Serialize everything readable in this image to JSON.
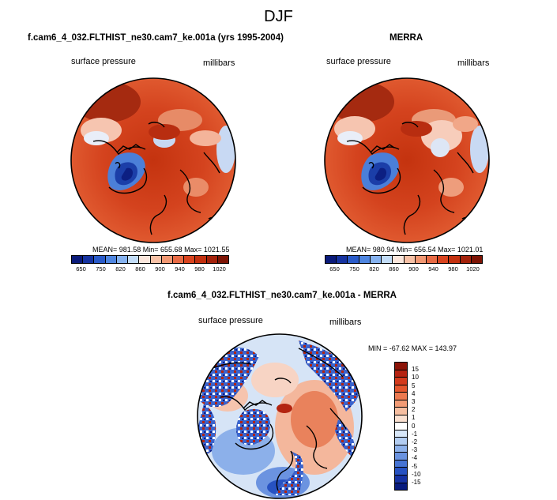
{
  "page": {
    "title": "DJF"
  },
  "panel_left": {
    "title": "f.cam6_4_032.FLTHIST_ne30.cam7_ke.001a (yrs 1995-2004)",
    "left_label": "surface pressure",
    "right_label": "millibars",
    "stats": "MEAN= 981.58  Min= 655.68  Max= 1021.55"
  },
  "panel_right": {
    "title": "MERRA",
    "left_label": "surface pressure",
    "right_label": "millibars",
    "stats": "MEAN= 980.94  Min= 656.54  Max= 1021.01"
  },
  "panel_diff": {
    "title": "f.cam6_4_032.FLTHIST_ne30.cam7_ke.001a - MERRA",
    "left_label": "surface pressure",
    "right_label": "millibars",
    "stats": "MIN = -67.62 MAX = 143.97"
  },
  "colorbar_abs": {
    "tick_labels": [
      "650",
      "750",
      "820",
      "860",
      "900",
      "940",
      "980",
      "1020"
    ],
    "colors": [
      "#0a1a7a",
      "#1633a0",
      "#2a5bc9",
      "#4f86e0",
      "#86b2ef",
      "#c2dcf7",
      "#fbe6dc",
      "#f7c1a6",
      "#f19873",
      "#e86b45",
      "#d9441f",
      "#c2300f",
      "#a3220b",
      "#7d1405"
    ]
  },
  "colorbar_diff": {
    "tick_labels": [
      "15",
      "10",
      "5",
      "4",
      "3",
      "2",
      "1",
      "0",
      "-1",
      "-2",
      "-3",
      "-4",
      "-5",
      "-10",
      "-15"
    ],
    "colors": [
      "#8c1408",
      "#b52311",
      "#d33b1d",
      "#e4572e",
      "#ec7a50",
      "#f29b75",
      "#f6bea0",
      "#fae0d0",
      "#ffffff",
      "#d8e7f8",
      "#b3cdf1",
      "#8db1ea",
      "#6a93e0",
      "#4674d4",
      "#2752c2",
      "#1632a3",
      "#081b7e"
    ]
  }
}
